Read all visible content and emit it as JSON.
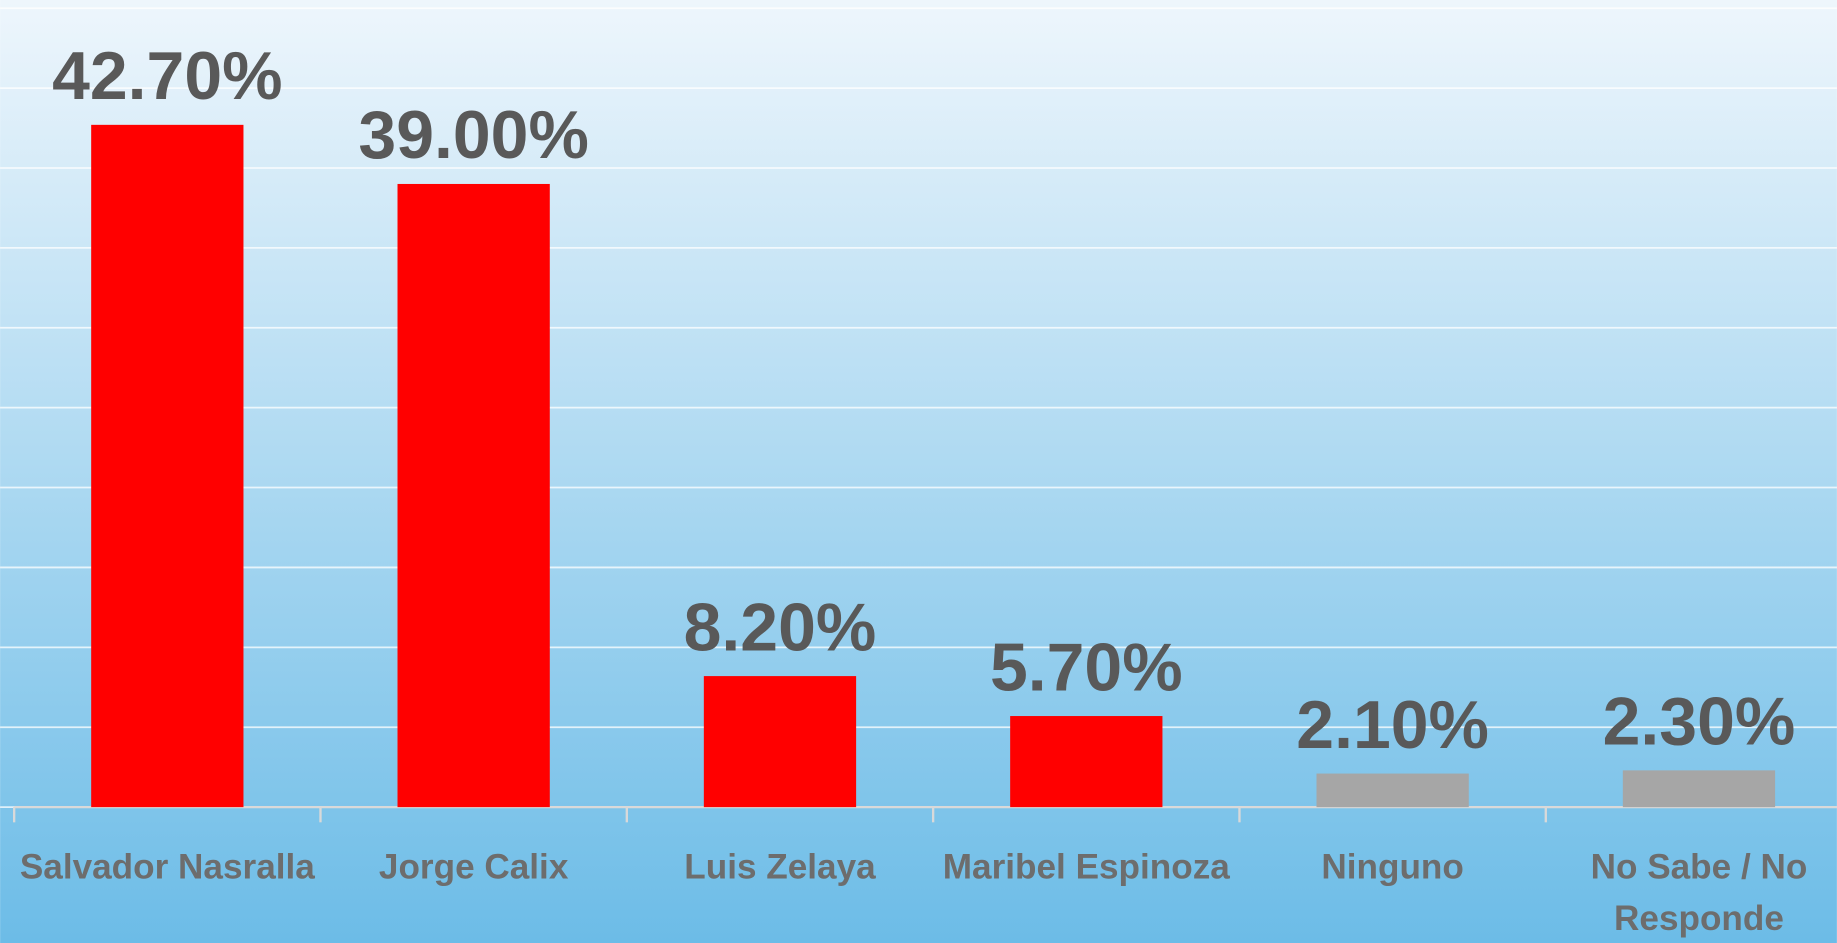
{
  "chart_data": {
    "type": "bar",
    "categories": [
      "Salvador Nasralla",
      "Jorge Calix",
      "Luis Zelaya",
      "Maribel Espinoza",
      "Ninguno",
      "No Sabe / No Responde"
    ],
    "values": [
      42.7,
      39.0,
      8.2,
      5.7,
      2.1,
      2.3
    ],
    "value_labels": [
      "42.70%",
      "39.00%",
      "8.20%",
      "5.70%",
      "2.10%",
      "2.30%"
    ],
    "colors": [
      "#ff0000",
      "#ff0000",
      "#ff0000",
      "#ff0000",
      "#a6a6a6",
      "#a6a6a6"
    ],
    "ylim": [
      0,
      50
    ],
    "yticks": [
      0,
      5,
      10,
      15,
      20,
      25,
      30,
      35,
      40,
      45,
      50
    ],
    "grid": true
  }
}
